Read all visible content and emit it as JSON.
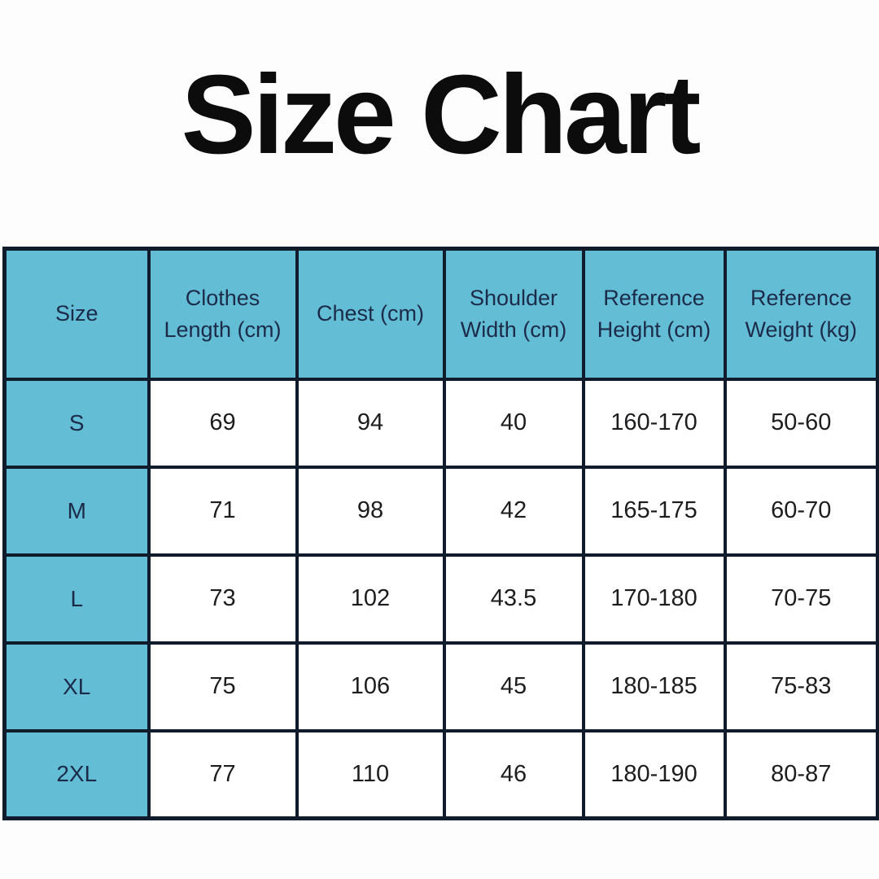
{
  "title": "Size Chart",
  "table": {
    "columns": [
      "Size",
      "Clothes Length (cm)",
      "Chest (cm)",
      "Shoulder Width (cm)",
      "Reference Height (cm)",
      "Reference Weight (kg)"
    ],
    "rows": [
      {
        "size": "S",
        "values": [
          "69",
          "94",
          "40",
          "160-170",
          "50-60"
        ]
      },
      {
        "size": "M",
        "values": [
          "71",
          "98",
          "42",
          "165-175",
          "60-70"
        ]
      },
      {
        "size": "L",
        "values": [
          "73",
          "102",
          "43.5",
          "170-180",
          "70-75"
        ]
      },
      {
        "size": "XL",
        "values": [
          "75",
          "106",
          "45",
          "180-185",
          "75-83"
        ]
      },
      {
        "size": "2XL",
        "values": [
          "77",
          "110",
          "46",
          "180-190",
          "80-87"
        ]
      }
    ],
    "colors": {
      "header_bg": "#62bdd5",
      "size_column_bg": "#62bdd5",
      "border": "#101c2b",
      "header_text": "#1c2b4a",
      "cell_text": "#1d1d1f",
      "cell_bg": "#ffffff",
      "page_bg": "#fdfdfd",
      "title_text": "#0c0c0c"
    }
  }
}
